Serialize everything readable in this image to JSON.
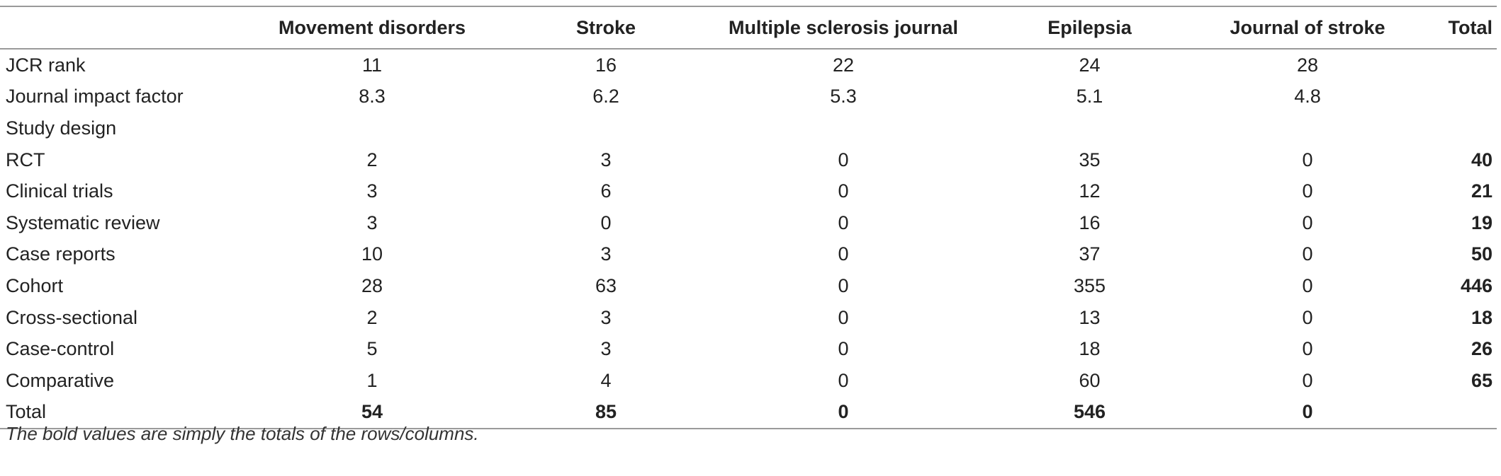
{
  "table": {
    "headers": [
      "",
      "Movement disorders",
      "Stroke",
      "Multiple sclerosis journal",
      "Epilepsia",
      "Journal of stroke",
      "Total"
    ],
    "rows": [
      {
        "label": "JCR rank",
        "values": [
          "11",
          "16",
          "22",
          "24",
          "28"
        ],
        "total": ""
      },
      {
        "label": "Journal impact factor",
        "values": [
          "8.3",
          "6.2",
          "5.3",
          "5.1",
          "4.8"
        ],
        "total": ""
      },
      {
        "label": "Study design",
        "values": [
          "",
          "",
          "",
          "",
          ""
        ],
        "total": ""
      },
      {
        "label": "RCT",
        "values": [
          "2",
          "3",
          "0",
          "35",
          "0"
        ],
        "total": "40"
      },
      {
        "label": "Clinical trials",
        "values": [
          "3",
          "6",
          "0",
          "12",
          "0"
        ],
        "total": "21"
      },
      {
        "label": "Systematic review",
        "values": [
          "3",
          "0",
          "0",
          "16",
          "0"
        ],
        "total": "19"
      },
      {
        "label": "Case reports",
        "values": [
          "10",
          "3",
          "0",
          "37",
          "0"
        ],
        "total": "50"
      },
      {
        "label": "Cohort",
        "values": [
          "28",
          "63",
          "0",
          "355",
          "0"
        ],
        "total": "446"
      },
      {
        "label": "Cross-sectional",
        "values": [
          "2",
          "3",
          "0",
          "13",
          "0"
        ],
        "total": "18"
      },
      {
        "label": "Case-control",
        "values": [
          "5",
          "3",
          "0",
          "18",
          "0"
        ],
        "total": "26"
      },
      {
        "label": "Comparative",
        "values": [
          "1",
          "4",
          "0",
          "60",
          "0"
        ],
        "total": "65"
      },
      {
        "label": "Total",
        "values": [
          "54",
          "85",
          "0",
          "546",
          "0"
        ],
        "total": ""
      }
    ]
  },
  "footnote": "The bold values are simply the totals of the rows/columns."
}
